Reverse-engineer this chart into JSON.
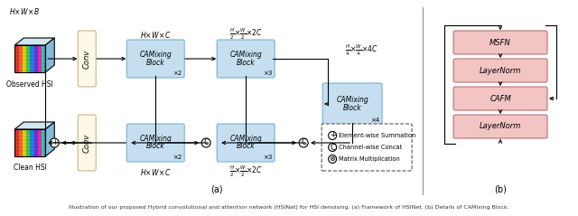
{
  "bg_color": "#ffffff",
  "blue_block_color": "#c5dff0",
  "blue_block_edge": "#7bafd4",
  "cream_block_color": "#fdf8e8",
  "cream_block_edge": "#c8b87a",
  "pink_block_color": "#f2c4c4",
  "pink_block_edge": "#c07070",
  "label_a": "(a)",
  "label_b": "(b)",
  "caption": "Illustration of our proposed Hybrid convolutional and attention network (HSINet) for HSI denoising. (a) Framework of HSINet. (b) Details of CAMixing Block."
}
